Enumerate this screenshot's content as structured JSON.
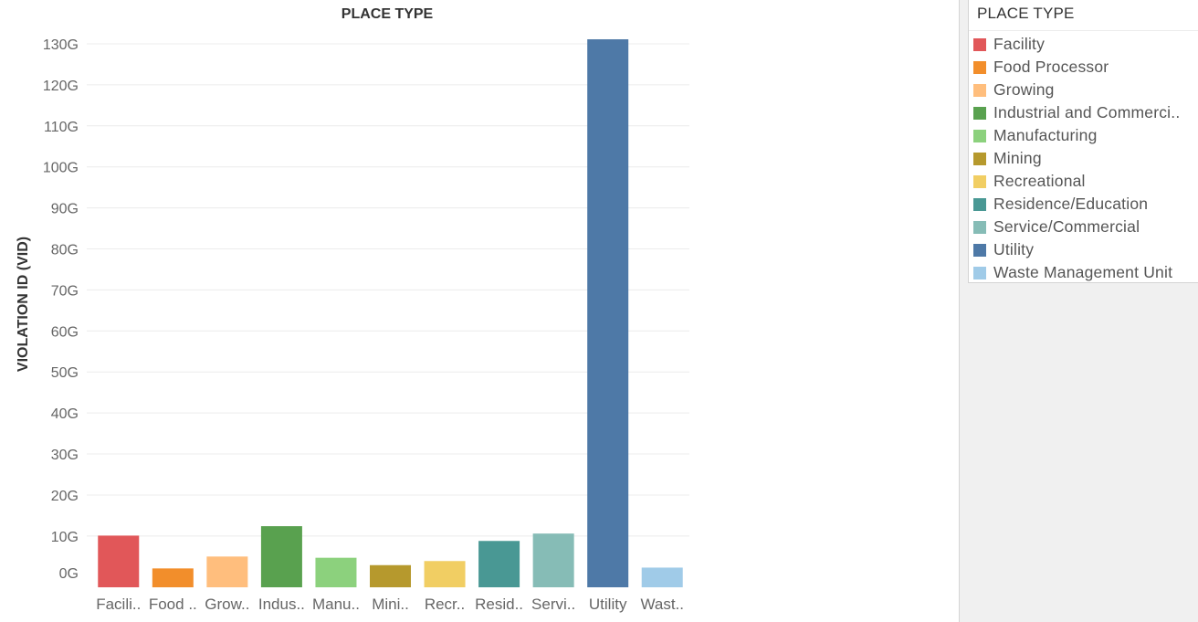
{
  "legend": {
    "title": "PLACE TYPE",
    "items": [
      {
        "label": "Facility",
        "color": "#e15759"
      },
      {
        "label": "Food Processor",
        "color": "#f28e2b"
      },
      {
        "label": "Growing",
        "color": "#ffbe7d"
      },
      {
        "label": "Industrial and Commerci..",
        "color": "#59a14f"
      },
      {
        "label": "Manufacturing",
        "color": "#8cd17d"
      },
      {
        "label": "Mining",
        "color": "#b6992d"
      },
      {
        "label": "Recreational",
        "color": "#f1ce63"
      },
      {
        "label": "Residence/Education",
        "color": "#499894"
      },
      {
        "label": "Service/Commercial",
        "color": "#86bcb6"
      },
      {
        "label": "Utility",
        "color": "#4e79a7"
      },
      {
        "label": "Waste Management Unit",
        "color": "#a0cbe8"
      }
    ]
  },
  "chart_data": {
    "type": "bar",
    "title": "PLACE TYPE",
    "xlabel": "",
    "ylabel": "VIOLATION ID (VID)",
    "categories": [
      "Facili..",
      "Food ..",
      "Grow..",
      "Indus..",
      "Manu..",
      "Mini..",
      "Recr..",
      "Resid..",
      "Servi..",
      "Utility",
      "Wast.."
    ],
    "values": [
      10.1,
      2.1,
      5.0,
      12.4,
      4.7,
      2.9,
      3.9,
      8.8,
      10.6,
      131.1,
      2.3
    ],
    "colors": [
      "#e15759",
      "#f28e2b",
      "#ffbe7d",
      "#59a14f",
      "#8cd17d",
      "#b6992d",
      "#f1ce63",
      "#499894",
      "#86bcb6",
      "#4e79a7",
      "#a0cbe8"
    ],
    "unit_suffix": "G",
    "yticks": [
      0,
      10,
      20,
      30,
      40,
      50,
      60,
      70,
      80,
      90,
      100,
      110,
      120,
      130
    ],
    "ytick_labels": [
      "0G",
      "10G",
      "20G",
      "30G",
      "40G",
      "50G",
      "60G",
      "70G",
      "80G",
      "90G",
      "100G",
      "110G",
      "120G",
      "130G"
    ],
    "ylim": [
      -2.5,
      134
    ],
    "grid": true,
    "legend_position": "right"
  }
}
